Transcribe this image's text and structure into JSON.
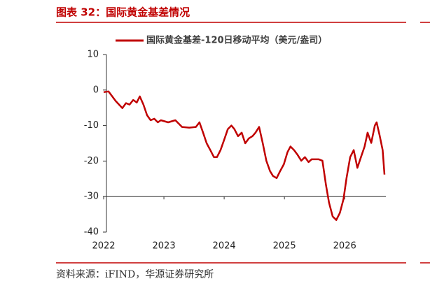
{
  "figure_title": "图表 32：国际黄金基差情况",
  "source": "资料来源：iFIND，华源证券研究所",
  "chart_data": {
    "type": "line",
    "series": [
      {
        "name": "国际黄金基差-120日移动平均（美元/盎司）",
        "color": "#c00000",
        "values": [
          -0.6,
          -0.4,
          -3.1,
          -5.1,
          -3.7,
          -4.1,
          -2.8,
          -3.5,
          -1.8,
          -4.1,
          -7.1,
          -8.5,
          -8.1,
          -9.1,
          -8.5,
          -9.1,
          -8.5,
          -10.4,
          -10.6,
          -10.4,
          -9.1,
          -12.0,
          -15.0,
          -16.9,
          -18.9,
          -18.9,
          -16.9,
          -14.0,
          -11.0,
          -10.0,
          -11.0,
          -13.0,
          -12.0,
          -15.0,
          -13.6,
          -13.0,
          -12.0,
          -10.4,
          -15.0,
          -19.9,
          -22.8,
          -24.2,
          -24.8,
          -22.8,
          -20.9,
          -17.5,
          -15.9,
          -16.9,
          -18.3,
          -19.9,
          -18.9,
          -20.3,
          -19.5,
          -19.5,
          -19.9,
          -26.8,
          -31.7,
          -35.6,
          -36.6,
          -34.6,
          -30.7,
          -24.8,
          -18.9,
          -16.9,
          -21.9,
          -18.9,
          -15.9,
          -12.0,
          -14.9,
          -10.0,
          -9.1,
          -12.8,
          -16.9,
          -23.8
        ]
      }
    ],
    "x": [
      2022.0,
      2022.08,
      2022.2,
      2022.31,
      2022.37,
      2022.43,
      2022.49,
      2022.55,
      2022.6,
      2022.66,
      2022.72,
      2022.78,
      2022.84,
      2022.9,
      2022.95,
      2023.07,
      2023.19,
      2023.3,
      2023.42,
      2023.53,
      2023.59,
      2023.65,
      2023.71,
      2023.77,
      2023.83,
      2023.88,
      2023.94,
      2024.0,
      2024.06,
      2024.12,
      2024.17,
      2024.23,
      2024.29,
      2024.35,
      2024.41,
      2024.47,
      2024.52,
      2024.58,
      2024.64,
      2024.7,
      2024.76,
      2024.81,
      2024.87,
      2024.93,
      2024.99,
      2025.05,
      2025.1,
      2025.16,
      2025.22,
      2025.28,
      2025.34,
      2025.4,
      2025.45,
      2025.57,
      2025.63,
      2025.69,
      2025.74,
      2025.8,
      2025.86,
      2025.92,
      2025.98,
      2026.03,
      2026.09,
      2026.15,
      2026.21,
      2026.27,
      2026.33,
      2026.38,
      2026.44,
      2026.5,
      2026.53,
      2026.58,
      2026.63,
      2026.66
    ],
    "xlim": [
      2022,
      2026.66
    ],
    "xticks": [
      2022,
      2023,
      2024,
      2025,
      2026
    ],
    "ylim": [
      -40,
      10
    ],
    "yticks": [
      -40,
      -30,
      -20,
      -10,
      0,
      10
    ],
    "x_axis_at": -30,
    "legend": "top"
  }
}
